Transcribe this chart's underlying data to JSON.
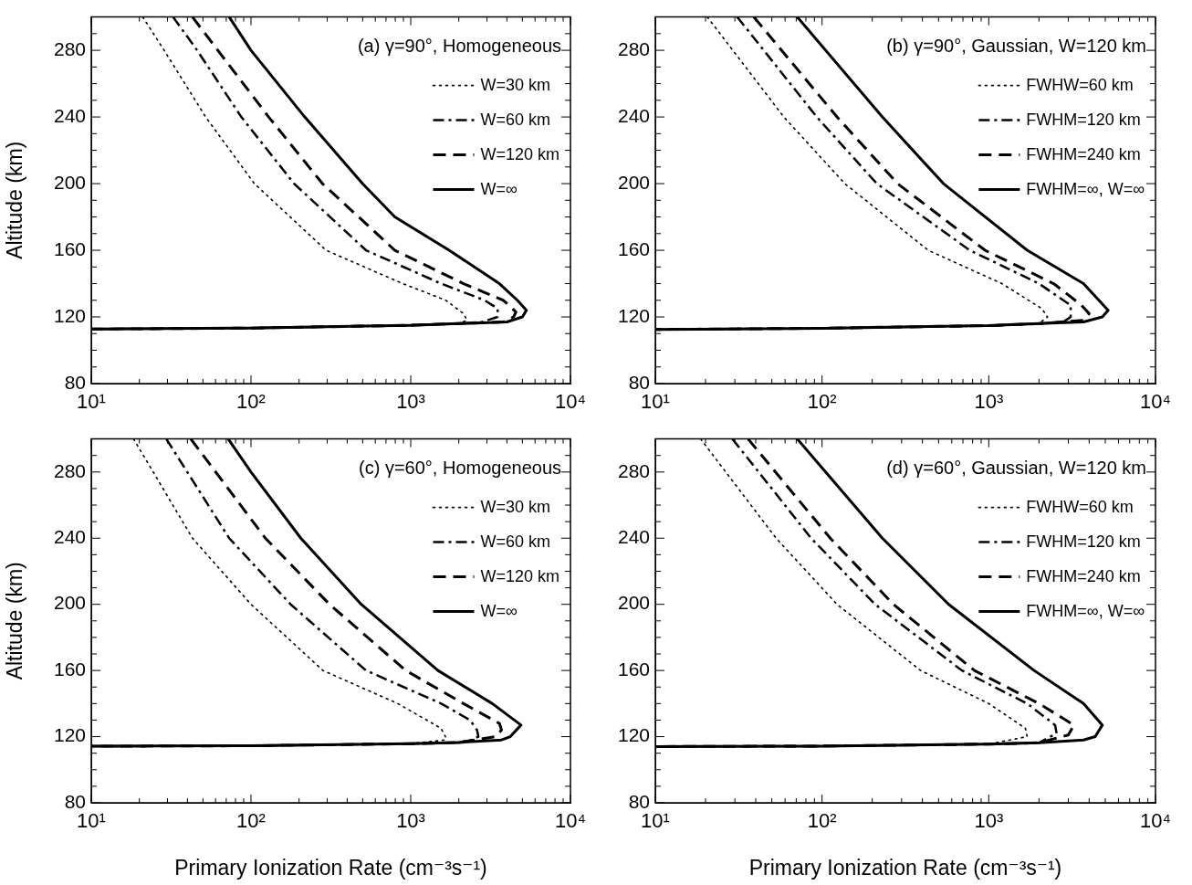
{
  "chart_data": [
    {
      "type": "line",
      "title": "(a) γ=90°, Homogeneous",
      "ylabel": "Altitude (km)",
      "log": "x",
      "legend": "top right",
      "xlim": [
        10,
        10000
      ],
      "ylim": [
        80,
        300
      ],
      "xticks": [
        {
          "value": 10,
          "label": "10¹"
        },
        {
          "value": 20,
          "label": null
        },
        {
          "value": 30,
          "label": null
        },
        {
          "value": 40,
          "label": null
        },
        {
          "value": 50,
          "label": null
        },
        {
          "value": 60,
          "label": null
        },
        {
          "value": 70,
          "label": null
        },
        {
          "value": 80,
          "label": null
        },
        {
          "value": 90,
          "label": null
        },
        {
          "value": 100,
          "label": "10²"
        },
        {
          "value": 200,
          "label": null
        },
        {
          "value": 300,
          "label": null
        },
        {
          "value": 400,
          "label": null
        },
        {
          "value": 500,
          "label": null
        },
        {
          "value": 600,
          "label": null
        },
        {
          "value": 700,
          "label": null
        },
        {
          "value": 800,
          "label": null
        },
        {
          "value": 900,
          "label": null
        },
        {
          "value": 1000,
          "label": "10³"
        },
        {
          "value": 2000,
          "label": null
        },
        {
          "value": 3000,
          "label": null
        },
        {
          "value": 4000,
          "label": null
        },
        {
          "value": 5000,
          "label": null
        },
        {
          "value": 6000,
          "label": null
        },
        {
          "value": 7000,
          "label": null
        },
        {
          "value": 8000,
          "label": null
        },
        {
          "value": 9000,
          "label": null
        },
        {
          "value": 10000,
          "label": "10⁴"
        }
      ],
      "yticks": [
        80,
        {
          "value": 90,
          "label": null
        },
        {
          "value": 100,
          "label": null
        },
        {
          "value": 110,
          "label": null
        },
        120,
        {
          "value": 130,
          "label": null
        },
        {
          "value": 140,
          "label": null
        },
        {
          "value": 150,
          "label": null
        },
        160,
        {
          "value": 170,
          "label": null
        },
        {
          "value": 180,
          "label": null
        },
        {
          "value": 190,
          "label": null
        },
        200,
        {
          "value": 210,
          "label": null
        },
        {
          "value": 220,
          "label": null
        },
        {
          "value": 230,
          "label": null
        },
        240,
        {
          "value": 250,
          "label": null
        },
        {
          "value": 260,
          "label": null
        },
        {
          "value": 270,
          "label": null
        },
        280,
        {
          "value": 290,
          "label": null
        }
      ],
      "series": [
        {
          "name": "W=30 km",
          "color": "#000000",
          "line_style": "dotted",
          "x": [
            21,
            28.6,
            52,
            105,
            295,
            890,
            1660,
            2140,
            2250,
            2000,
            1000,
            500,
            100,
            10
          ],
          "values": [
            300,
            280,
            240,
            200,
            160,
            140,
            130,
            122,
            118,
            116,
            115,
            114.5,
            113.3,
            112.7
          ]
        },
        {
          "name": "W=60 km",
          "color": "#000000",
          "line_style": "dashdot",
          "x": [
            32.5,
            46,
            87,
            186,
            525,
            1550,
            2900,
            3500,
            3500,
            2800,
            2000,
            1000,
            500,
            100,
            10
          ],
          "values": [
            300,
            280,
            240,
            200,
            160,
            140,
            130,
            125,
            120,
            117,
            116,
            115,
            114.5,
            113.3,
            112.7
          ]
        },
        {
          "name": "W=120 km",
          "color": "#000000",
          "line_style": "dashed",
          "x": [
            43,
            62,
            129,
            280,
            795,
            2140,
            3800,
            4560,
            4400,
            3800,
            2000,
            1000,
            500,
            100,
            10
          ],
          "values": [
            300,
            280,
            240,
            200,
            160,
            140,
            130,
            123,
            120,
            117,
            116,
            115,
            114.5,
            113.3,
            112.7
          ]
        },
        {
          "name": "W=∞",
          "color": "#000000",
          "line_style": "solid",
          "x": [
            73,
            100,
            217,
            499,
            795,
            1740,
            3590,
            4650,
            5300,
            5000,
            4000,
            2000,
            1000,
            500,
            100,
            10
          ],
          "values": [
            300,
            280,
            240,
            200,
            180,
            160,
            140,
            130,
            124,
            120,
            117,
            116,
            115,
            114.5,
            113.3,
            112.7
          ]
        }
      ]
    },
    {
      "type": "line",
      "title": "(b) γ=90°, Gaussian, W=120 km",
      "log": "x",
      "legend": "top right",
      "xlim": [
        10,
        10000
      ],
      "ylim": [
        80,
        300
      ],
      "xticks": [
        {
          "value": 10,
          "label": "10¹"
        },
        {
          "value": 20,
          "label": null
        },
        {
          "value": 30,
          "label": null
        },
        {
          "value": 40,
          "label": null
        },
        {
          "value": 50,
          "label": null
        },
        {
          "value": 60,
          "label": null
        },
        {
          "value": 70,
          "label": null
        },
        {
          "value": 80,
          "label": null
        },
        {
          "value": 90,
          "label": null
        },
        {
          "value": 100,
          "label": "10²"
        },
        {
          "value": 200,
          "label": null
        },
        {
          "value": 300,
          "label": null
        },
        {
          "value": 400,
          "label": null
        },
        {
          "value": 500,
          "label": null
        },
        {
          "value": 600,
          "label": null
        },
        {
          "value": 700,
          "label": null
        },
        {
          "value": 800,
          "label": null
        },
        {
          "value": 900,
          "label": null
        },
        {
          "value": 1000,
          "label": "10³"
        },
        {
          "value": 2000,
          "label": null
        },
        {
          "value": 3000,
          "label": null
        },
        {
          "value": 4000,
          "label": null
        },
        {
          "value": 5000,
          "label": null
        },
        {
          "value": 6000,
          "label": null
        },
        {
          "value": 7000,
          "label": null
        },
        {
          "value": 8000,
          "label": null
        },
        {
          "value": 9000,
          "label": null
        },
        {
          "value": 10000,
          "label": "10⁴"
        }
      ],
      "yticks": [
        80,
        {
          "value": 90,
          "label": null
        },
        {
          "value": 100,
          "label": null
        },
        {
          "value": 110,
          "label": null
        },
        120,
        {
          "value": 130,
          "label": null
        },
        {
          "value": 140,
          "label": null
        },
        {
          "value": 150,
          "label": null
        },
        160,
        {
          "value": 170,
          "label": null
        },
        {
          "value": 180,
          "label": null
        },
        {
          "value": 190,
          "label": null
        },
        200,
        {
          "value": 210,
          "label": null
        },
        {
          "value": 220,
          "label": null
        },
        {
          "value": 230,
          "label": null
        },
        240,
        {
          "value": 250,
          "label": null
        },
        {
          "value": 260,
          "label": null
        },
        {
          "value": 270,
          "label": null
        },
        280,
        {
          "value": 290,
          "label": null
        }
      ],
      "series": [
        {
          "name": "FWHW=60 km",
          "color": "#000000",
          "line_style": "dotted",
          "x": [
            20.5,
            59,
            137,
            433,
            1200,
            2080,
            2250,
            2000,
            1000,
            100,
            10
          ],
          "values": [
            300,
            240,
            200,
            160,
            140,
            125,
            120,
            116,
            114.8,
            113.2,
            112.5
          ]
        },
        {
          "name": "FWHM=120 km",
          "color": "#000000",
          "line_style": "dashdot",
          "x": [
            31,
            93,
            213,
            770,
            2000,
            3100,
            3100,
            2800,
            2000,
            1000,
            100,
            10
          ],
          "values": [
            300,
            240,
            200,
            160,
            140,
            127,
            120,
            117,
            116,
            114.8,
            113.2,
            112.5
          ]
        },
        {
          "name": "FWHM=240 km",
          "color": "#000000",
          "line_style": "dashed",
          "x": [
            39,
            123,
            284,
            950,
            2450,
            3600,
            4000,
            3700,
            2000,
            1000,
            100,
            10
          ],
          "values": [
            300,
            240,
            200,
            160,
            140,
            127,
            122,
            118,
            116,
            114.8,
            113.2,
            112.5
          ]
        },
        {
          "name": "FWHM=∞, W=∞",
          "color": "#000000",
          "line_style": "solid",
          "x": [
            71,
            230,
            535,
            1700,
            3700,
            5200,
            4800,
            3700,
            2000,
            1000,
            100,
            10
          ],
          "values": [
            300,
            240,
            200,
            160,
            140,
            124,
            120,
            117,
            116,
            114.8,
            113.2,
            112.5
          ]
        }
      ]
    },
    {
      "type": "line",
      "title": "(c) γ=60°, Homogeneous",
      "xlabel": "Primary Ionization Rate (cm⁻³s⁻¹)",
      "ylabel": "Altitude (km)",
      "log": "x",
      "legend": "top right",
      "xlim": [
        10,
        10000
      ],
      "ylim": [
        80,
        300
      ],
      "xticks": [
        {
          "value": 10,
          "label": "10¹"
        },
        {
          "value": 20,
          "label": null
        },
        {
          "value": 30,
          "label": null
        },
        {
          "value": 40,
          "label": null
        },
        {
          "value": 50,
          "label": null
        },
        {
          "value": 60,
          "label": null
        },
        {
          "value": 70,
          "label": null
        },
        {
          "value": 80,
          "label": null
        },
        {
          "value": 90,
          "label": null
        },
        {
          "value": 100,
          "label": "10²"
        },
        {
          "value": 200,
          "label": null
        },
        {
          "value": 300,
          "label": null
        },
        {
          "value": 400,
          "label": null
        },
        {
          "value": 500,
          "label": null
        },
        {
          "value": 600,
          "label": null
        },
        {
          "value": 700,
          "label": null
        },
        {
          "value": 800,
          "label": null
        },
        {
          "value": 900,
          "label": null
        },
        {
          "value": 1000,
          "label": "10³"
        },
        {
          "value": 2000,
          "label": null
        },
        {
          "value": 3000,
          "label": null
        },
        {
          "value": 4000,
          "label": null
        },
        {
          "value": 5000,
          "label": null
        },
        {
          "value": 6000,
          "label": null
        },
        {
          "value": 7000,
          "label": null
        },
        {
          "value": 8000,
          "label": null
        },
        {
          "value": 9000,
          "label": null
        },
        {
          "value": 10000,
          "label": "10⁴"
        }
      ],
      "yticks": [
        80,
        {
          "value": 90,
          "label": null
        },
        {
          "value": 100,
          "label": null
        },
        {
          "value": 110,
          "label": null
        },
        120,
        {
          "value": 130,
          "label": null
        },
        {
          "value": 140,
          "label": null
        },
        {
          "value": 150,
          "label": null
        },
        160,
        {
          "value": 170,
          "label": null
        },
        {
          "value": 180,
          "label": null
        },
        {
          "value": 190,
          "label": null
        },
        200,
        {
          "value": 210,
          "label": null
        },
        {
          "value": 220,
          "label": null
        },
        {
          "value": 230,
          "label": null
        },
        240,
        {
          "value": 250,
          "label": null
        },
        {
          "value": 260,
          "label": null
        },
        {
          "value": 270,
          "label": null
        },
        280,
        {
          "value": 290,
          "label": null
        }
      ],
      "series": [
        {
          "name": "W=30 km",
          "color": "#000000",
          "line_style": "dotted",
          "x": [
            18.4,
            43,
            100,
            282,
            830,
            1550,
            1650,
            1650,
            1000,
            100,
            10
          ],
          "values": [
            300,
            240,
            200,
            160,
            140,
            125,
            120,
            118,
            115.7,
            114.5,
            114.2
          ]
        },
        {
          "name": "W=60 km",
          "color": "#000000",
          "line_style": "dashdot",
          "x": [
            29.5,
            73,
            177,
            525,
            1550,
            2350,
            2600,
            2650,
            2400,
            2000,
            1000,
            100,
            10
          ],
          "values": [
            300,
            240,
            200,
            160,
            140,
            130,
            124,
            120,
            118,
            116.5,
            115.7,
            114.5,
            114.2
          ]
        },
        {
          "name": "W=120 km",
          "color": "#000000",
          "line_style": "dashed",
          "x": [
            42,
            123,
            310,
            930,
            2140,
            3590,
            3700,
            3400,
            2000,
            1000,
            100,
            10
          ],
          "values": [
            300,
            240,
            200,
            160,
            140,
            128,
            124,
            120,
            116.5,
            115.7,
            114.5,
            114.2
          ]
        },
        {
          "name": "W=∞",
          "color": "#000000",
          "line_style": "solid",
          "x": [
            72,
            100,
            205,
            490,
            1480,
            3240,
            4900,
            4200,
            3700,
            2000,
            1000,
            100,
            10
          ],
          "values": [
            300,
            280,
            240,
            200,
            160,
            140,
            127,
            120,
            118,
            116.5,
            115.7,
            114.5,
            114.2
          ]
        }
      ]
    },
    {
      "type": "line",
      "title": "(d) γ=60°, Gaussian, W=120 km",
      "xlabel": "Primary Ionization Rate (cm⁻³s⁻¹)",
      "log": "x",
      "legend": "top right",
      "xlim": [
        10,
        10000
      ],
      "ylim": [
        80,
        300
      ],
      "xticks": [
        {
          "value": 10,
          "label": "10¹"
        },
        {
          "value": 20,
          "label": null
        },
        {
          "value": 30,
          "label": null
        },
        {
          "value": 40,
          "label": null
        },
        {
          "value": 50,
          "label": null
        },
        {
          "value": 60,
          "label": null
        },
        {
          "value": 70,
          "label": null
        },
        {
          "value": 80,
          "label": null
        },
        {
          "value": 90,
          "label": null
        },
        {
          "value": 100,
          "label": "10²"
        },
        {
          "value": 200,
          "label": null
        },
        {
          "value": 300,
          "label": null
        },
        {
          "value": 400,
          "label": null
        },
        {
          "value": 500,
          "label": null
        },
        {
          "value": 600,
          "label": null
        },
        {
          "value": 700,
          "label": null
        },
        {
          "value": 800,
          "label": null
        },
        {
          "value": 900,
          "label": null
        },
        {
          "value": 1000,
          "label": "10³"
        },
        {
          "value": 2000,
          "label": null
        },
        {
          "value": 3000,
          "label": null
        },
        {
          "value": 4000,
          "label": null
        },
        {
          "value": 5000,
          "label": null
        },
        {
          "value": 6000,
          "label": null
        },
        {
          "value": 7000,
          "label": null
        },
        {
          "value": 8000,
          "label": null
        },
        {
          "value": 9000,
          "label": null
        },
        {
          "value": 10000,
          "label": "10⁴"
        }
      ],
      "yticks": [
        80,
        {
          "value": 90,
          "label": null
        },
        {
          "value": 100,
          "label": null
        },
        {
          "value": 110,
          "label": null
        },
        120,
        {
          "value": 130,
          "label": null
        },
        {
          "value": 140,
          "label": null
        },
        {
          "value": 150,
          "label": null
        },
        160,
        {
          "value": 170,
          "label": null
        },
        {
          "value": 180,
          "label": null
        },
        {
          "value": 190,
          "label": null
        },
        200,
        {
          "value": 210,
          "label": null
        },
        {
          "value": 220,
          "label": null
        },
        {
          "value": 230,
          "label": null
        },
        240,
        {
          "value": 250,
          "label": null
        },
        {
          "value": 260,
          "label": null
        },
        {
          "value": 270,
          "label": null
        },
        280,
        {
          "value": 290,
          "label": null
        }
      ],
      "series": [
        {
          "name": "FWHW=60 km",
          "color": "#000000",
          "line_style": "dotted",
          "x": [
            18.7,
            53,
            123,
            390,
            1000,
            1660,
            1700,
            1000,
            100,
            10
          ],
          "values": [
            300,
            240,
            200,
            160,
            140,
            125,
            120,
            115.5,
            114.3,
            114
          ]
        },
        {
          "name": "FWHM=120 km",
          "color": "#000000",
          "line_style": "dashdot",
          "x": [
            29,
            86,
            208,
            690,
            1700,
            2500,
            2550,
            2000,
            1000,
            100,
            10
          ],
          "values": [
            300,
            240,
            200,
            160,
            140,
            127,
            122,
            116.3,
            115.5,
            114.3,
            114
          ]
        },
        {
          "name": "FWHM=240 km",
          "color": "#000000",
          "line_style": "dashed",
          "x": [
            36,
            112,
            268,
            820,
            2000,
            3240,
            3000,
            2000,
            1000,
            100,
            10
          ],
          "values": [
            300,
            240,
            200,
            160,
            140,
            127,
            121,
            116.3,
            115.5,
            114.3,
            114
          ]
        },
        {
          "name": "FWHM=∞, W=∞",
          "color": "#000000",
          "line_style": "solid",
          "x": [
            71,
            230,
            575,
            1870,
            3700,
            4800,
            4350,
            3700,
            2000,
            1000,
            100,
            10
          ],
          "values": [
            300,
            240,
            200,
            160,
            140,
            127,
            120,
            118,
            116.3,
            115.5,
            114.3,
            114
          ]
        }
      ]
    }
  ]
}
